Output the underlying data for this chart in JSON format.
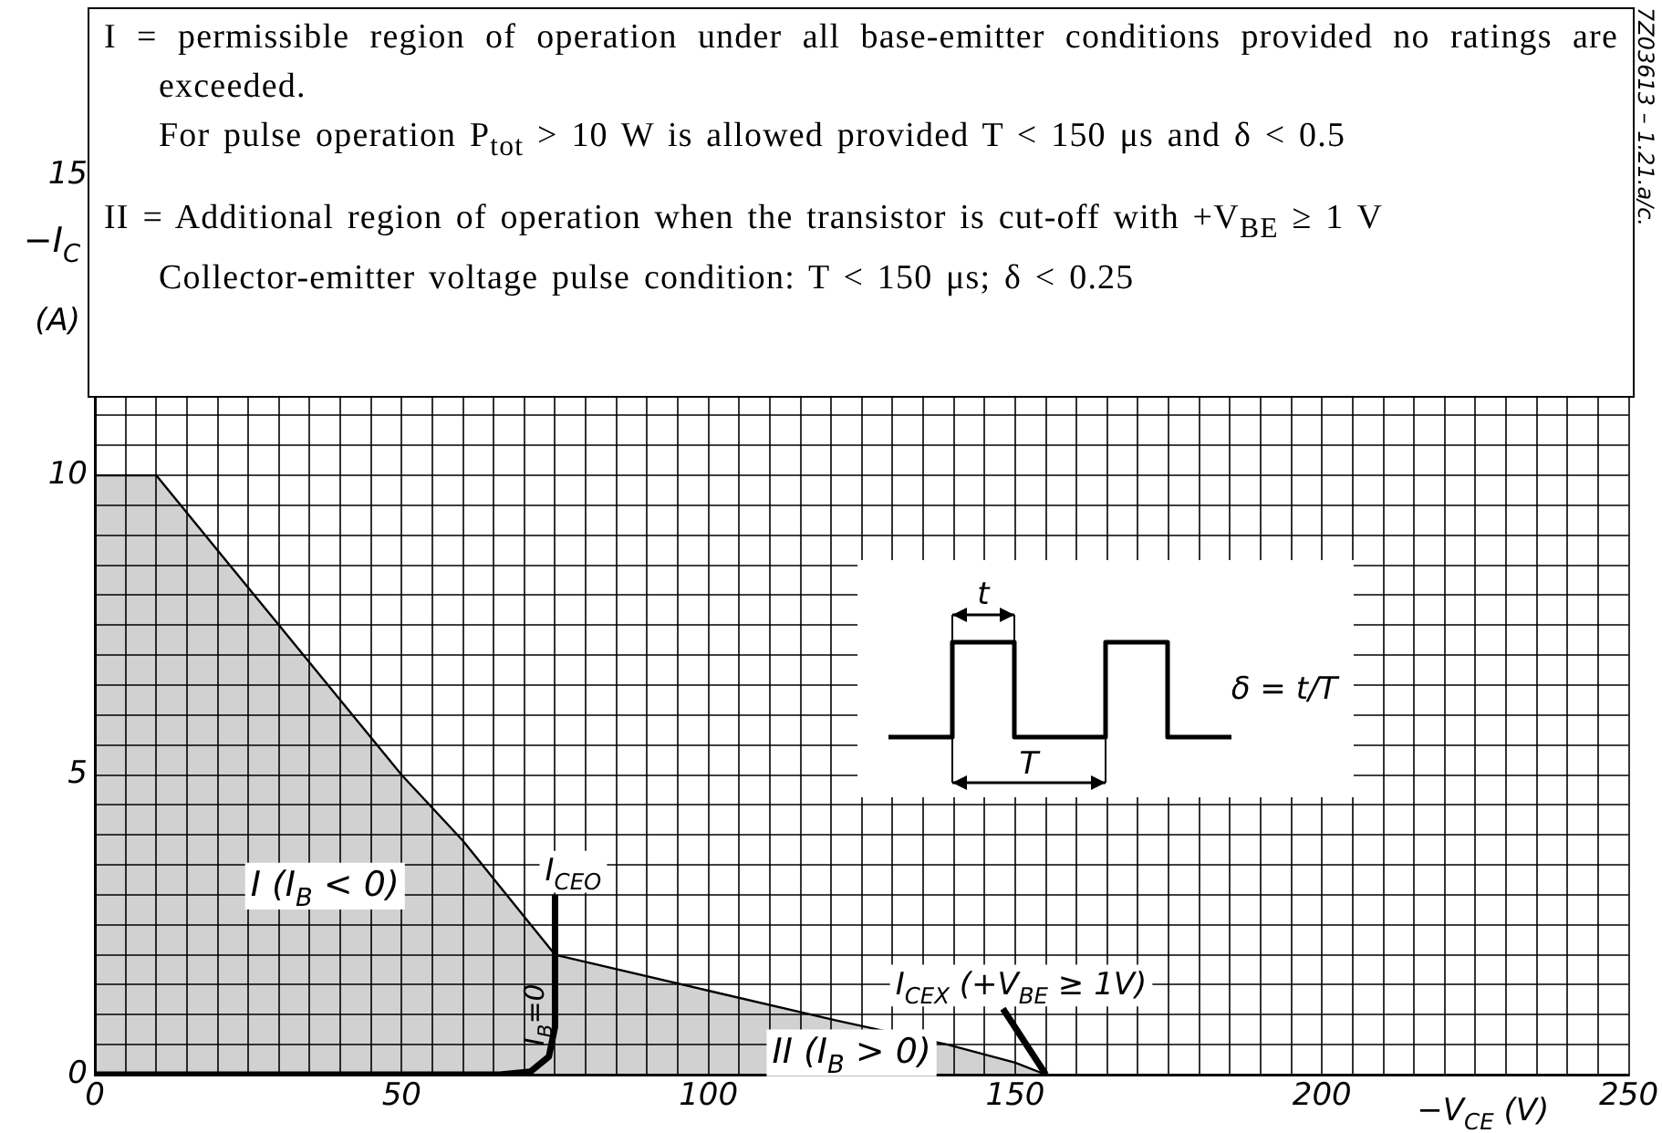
{
  "chart_data": {
    "type": "area",
    "xlabel": "−V$_{CE}$ (V)",
    "ylabel": "−I$_{C}$ (A)",
    "xlim": [
      0,
      250
    ],
    "ylim": [
      0,
      17.5
    ],
    "xticks": [
      0,
      {
        "value": 5,
        "label": null
      },
      {
        "value": 10,
        "label": null
      },
      {
        "value": 15,
        "label": null
      },
      {
        "value": 20,
        "label": null
      },
      {
        "value": 25,
        "label": null
      },
      {
        "value": 30,
        "label": null
      },
      {
        "value": 35,
        "label": null
      },
      {
        "value": 40,
        "label": null
      },
      {
        "value": 45,
        "label": null
      },
      50,
      {
        "value": 55,
        "label": null
      },
      {
        "value": 60,
        "label": null
      },
      {
        "value": 65,
        "label": null
      },
      {
        "value": 70,
        "label": null
      },
      {
        "value": 75,
        "label": null
      },
      {
        "value": 80,
        "label": null
      },
      {
        "value": 85,
        "label": null
      },
      {
        "value": 90,
        "label": null
      },
      {
        "value": 95,
        "label": null
      },
      100,
      {
        "value": 105,
        "label": null
      },
      {
        "value": 110,
        "label": null
      },
      {
        "value": 115,
        "label": null
      },
      {
        "value": 120,
        "label": null
      },
      {
        "value": 125,
        "label": null
      },
      {
        "value": 130,
        "label": null
      },
      {
        "value": 135,
        "label": null
      },
      {
        "value": 140,
        "label": null
      },
      {
        "value": 145,
        "label": null
      },
      150,
      {
        "value": 155,
        "label": null
      },
      {
        "value": 160,
        "label": null
      },
      {
        "value": 165,
        "label": null
      },
      {
        "value": 170,
        "label": null
      },
      {
        "value": 175,
        "label": null
      },
      {
        "value": 180,
        "label": null
      },
      {
        "value": 185,
        "label": null
      },
      {
        "value": 190,
        "label": null
      },
      {
        "value": 195,
        "label": null
      },
      200,
      {
        "value": 205,
        "label": null
      },
      {
        "value": 210,
        "label": null
      },
      {
        "value": 215,
        "label": null
      },
      {
        "value": 220,
        "label": null
      },
      {
        "value": 225,
        "label": null
      },
      {
        "value": 230,
        "label": null
      },
      {
        "value": 235,
        "label": null
      },
      {
        "value": 240,
        "label": null
      },
      {
        "value": 245,
        "label": null
      },
      250
    ],
    "yticks": [
      0,
      {
        "value": 0.5,
        "label": null
      },
      {
        "value": 1,
        "label": null
      },
      {
        "value": 1.5,
        "label": null
      },
      {
        "value": 2,
        "label": null
      },
      {
        "value": 2.5,
        "label": null
      },
      {
        "value": 3,
        "label": null
      },
      {
        "value": 3.5,
        "label": null
      },
      {
        "value": 4,
        "label": null
      },
      {
        "value": 4.5,
        "label": null
      },
      5,
      {
        "value": 5.5,
        "label": null
      },
      {
        "value": 6,
        "label": null
      },
      {
        "value": 6.5,
        "label": null
      },
      {
        "value": 7,
        "label": null
      },
      {
        "value": 7.5,
        "label": null
      },
      {
        "value": 8,
        "label": null
      },
      {
        "value": 8.5,
        "label": null
      },
      {
        "value": 9,
        "label": null
      },
      {
        "value": 9.5,
        "label": null
      },
      10,
      {
        "value": 10.5,
        "label": null
      },
      {
        "value": 11,
        "label": null
      },
      15
    ],
    "grid": true,
    "legend": false,
    "series": [
      {
        "name": "I (I$_{B}$ < 0)",
        "color": "#000000",
        "x": [
          0,
          10,
          30,
          50,
          60,
          75
        ],
        "values": [
          10,
          10,
          7.5,
          5,
          3.9,
          2
        ]
      },
      {
        "name": "II (I$_{B}$ > 0)",
        "color": "#000000",
        "x": [
          75,
          100,
          121,
          139,
          150,
          155
        ],
        "values": [
          2,
          1.4,
          0.9,
          0.5,
          0.2,
          0
        ]
      },
      {
        "name": "I$_{CEO}$",
        "type": "line",
        "color": "#000000",
        "x": [
          0,
          66,
          71,
          74,
          75,
          75
        ],
        "values": [
          0,
          0,
          0.05,
          0.3,
          0.8,
          3
        ]
      },
      {
        "name": "I$_{CEX}$ (+V$_{BE}$ ≥ 1V)",
        "type": "line",
        "color": "#000000",
        "x": [
          155,
          148
        ],
        "values": [
          0,
          1.1
        ]
      }
    ],
    "annotations": [
      "I = permissible region of operation under all base-emitter conditions provided no ratings are exceeded.",
      "For pulse operation P$_{tot}$ > 10 W is allowed provided T < 150 μs and δ < 0.5",
      "II = Additional region of operation when the transistor is cut-off with +V$_{BE}$ ≥ 1 V",
      "Collector-emitter voltage pulse condition: T < 150 μs; δ < 0.25",
      "t",
      "T",
      "δ = t/T",
      "7Z03613 – 1.21.a/c.",
      "I$_{B}$=0"
    ]
  }
}
